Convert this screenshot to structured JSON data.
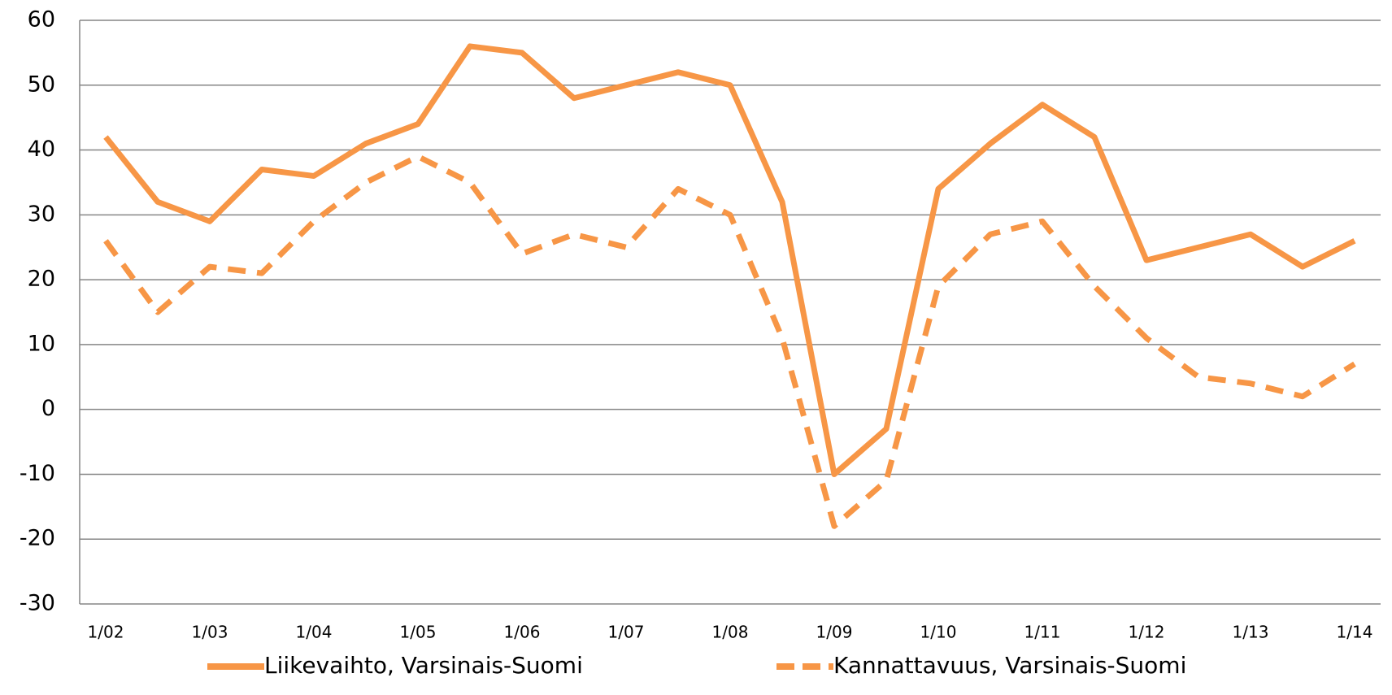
{
  "chart_data": {
    "type": "line",
    "categories": [
      "1/02",
      null,
      "1/03",
      null,
      "1/04",
      null,
      "1/05",
      null,
      "1/06",
      null,
      "1/07",
      null,
      "1/08",
      null,
      "1/09",
      null,
      "1/10",
      null,
      "1/11",
      null,
      "1/12",
      null,
      "1/13",
      null,
      "1/14"
    ],
    "series": [
      {
        "name": "Liikevaihto, Varsinais-Suomi",
        "color": "#f79646",
        "dashed": false,
        "values": [
          42,
          32,
          29,
          37,
          36,
          41,
          44,
          56,
          55,
          48,
          50,
          52,
          50,
          32,
          -10,
          -3,
          34,
          41,
          47,
          42,
          23,
          25,
          27,
          22,
          26
        ]
      },
      {
        "name": "Kannattavuus, Varsinais-Suomi",
        "color": "#f79646",
        "dashed": true,
        "values": [
          26,
          15,
          22,
          21,
          29,
          35,
          39,
          35,
          24,
          27,
          25,
          34,
          30,
          11,
          -18,
          -11,
          19,
          27,
          29,
          19,
          11,
          5,
          4,
          2,
          7
        ]
      }
    ],
    "ylim": [
      -30,
      60
    ],
    "yticks": [
      -30,
      -20,
      -10,
      0,
      10,
      20,
      30,
      40,
      50,
      60
    ],
    "grid": true,
    "legend": "bottom"
  }
}
